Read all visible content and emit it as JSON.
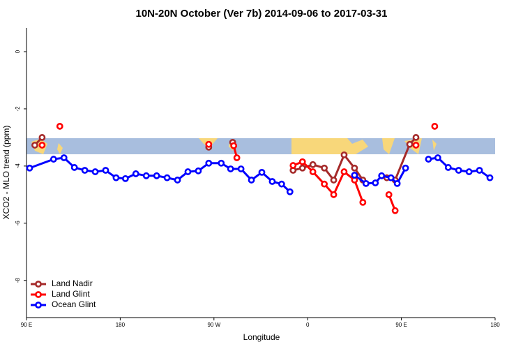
{
  "chart_data": {
    "type": "line",
    "title": "10N-20N October (Ver 7b)   2014-09-06 to 2017-03-31",
    "x_label": "Longitude",
    "y_label": "XCO2 - MLO trend (ppm)",
    "xlim": [
      90,
      540
    ],
    "xticks": [
      {
        "value": 90,
        "label": "90 E"
      },
      180,
      {
        "value": 270,
        "label": "90 W"
      },
      {
        "value": 360,
        "label": "0"
      },
      {
        "value": 450,
        "label": "90 E"
      },
      {
        "value": 540,
        "label": "180"
      }
    ],
    "ylim": [
      -9.3,
      0.83
    ],
    "yticks": [
      0,
      -2,
      -4,
      -6,
      -8
    ],
    "legend": "bottom-left",
    "series": [
      {
        "name": "Land Nadir",
        "color": "#a52a2a",
        "x": [
          98,
          105,
          null,
          265,
          null,
          288,
          null,
          346,
          355,
          365,
          376,
          385,
          395,
          405,
          413,
          null,
          436,
          444,
          458,
          464
        ],
        "values": [
          -3.27,
          -3.0,
          null,
          -3.34,
          null,
          -3.17,
          null,
          -4.15,
          -4.07,
          -3.95,
          -4.07,
          -4.49,
          -3.61,
          -4.07,
          -4.49,
          null,
          -4.41,
          -4.49,
          -3.24,
          -3.0
        ]
      },
      {
        "name": "Land Glint",
        "color": "#ff0000",
        "x": [
          105,
          null,
          122,
          null,
          265,
          null,
          289,
          292,
          null,
          346,
          355,
          365,
          376,
          385,
          395,
          405,
          413,
          null,
          438,
          444,
          null,
          464,
          null,
          482
        ],
        "values": [
          -3.27,
          null,
          -2.61,
          null,
          -3.24,
          null,
          -3.29,
          -3.71,
          null,
          -3.98,
          -3.85,
          -4.2,
          -4.63,
          -5.0,
          -4.2,
          -4.49,
          -5.27,
          null,
          -5.0,
          -5.56,
          null,
          -3.27,
          null,
          -2.61
        ]
      },
      {
        "name": "Ocean Glint",
        "color": "#0000ff",
        "x": [
          93,
          116,
          126,
          136,
          146,
          156,
          166,
          176,
          185,
          195,
          205,
          215,
          225,
          235,
          245,
          255,
          265,
          277,
          286,
          296,
          306,
          316,
          326,
          335,
          343,
          null,
          405,
          416,
          425,
          431,
          440,
          446,
          454,
          null,
          476,
          485,
          495,
          505,
          515,
          525,
          535
        ],
        "values": [
          -4.07,
          -3.76,
          -3.71,
          -4.05,
          -4.15,
          -4.2,
          -4.15,
          -4.41,
          -4.44,
          -4.27,
          -4.34,
          -4.34,
          -4.41,
          -4.49,
          -4.2,
          -4.17,
          -3.9,
          -3.9,
          -4.1,
          -4.1,
          -4.49,
          -4.22,
          -4.54,
          -4.63,
          -4.9,
          null,
          -4.32,
          -4.61,
          -4.59,
          -4.34,
          -4.41,
          -4.61,
          -4.07,
          null,
          -3.76,
          -3.71,
          -4.05,
          -4.15,
          -4.2,
          -4.15,
          -4.41
        ]
      }
    ]
  }
}
